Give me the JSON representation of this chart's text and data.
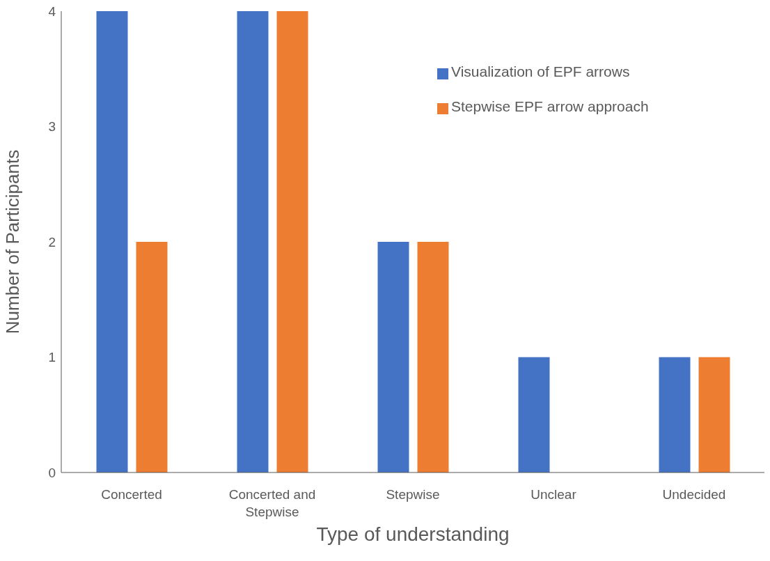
{
  "chart_data": {
    "type": "bar",
    "xlabel": "Type of understanding",
    "ylabel": "Number of Participants",
    "categories": [
      "Concerted",
      "Concerted and Stepwise",
      "Stepwise",
      "Unclear",
      "Undecided"
    ],
    "series": [
      {
        "name": "Visualization of EPF arrows",
        "color": "#4472c4",
        "values": [
          4,
          4,
          2,
          1,
          1
        ]
      },
      {
        "name": "Stepwise EPF arrow approach",
        "color": "#ed7d31",
        "values": [
          2,
          4,
          2,
          0,
          1
        ]
      }
    ],
    "ylim": [
      0,
      4
    ],
    "yticks": [
      0,
      1,
      2,
      3,
      4
    ],
    "grid": false,
    "legend": "top right"
  }
}
